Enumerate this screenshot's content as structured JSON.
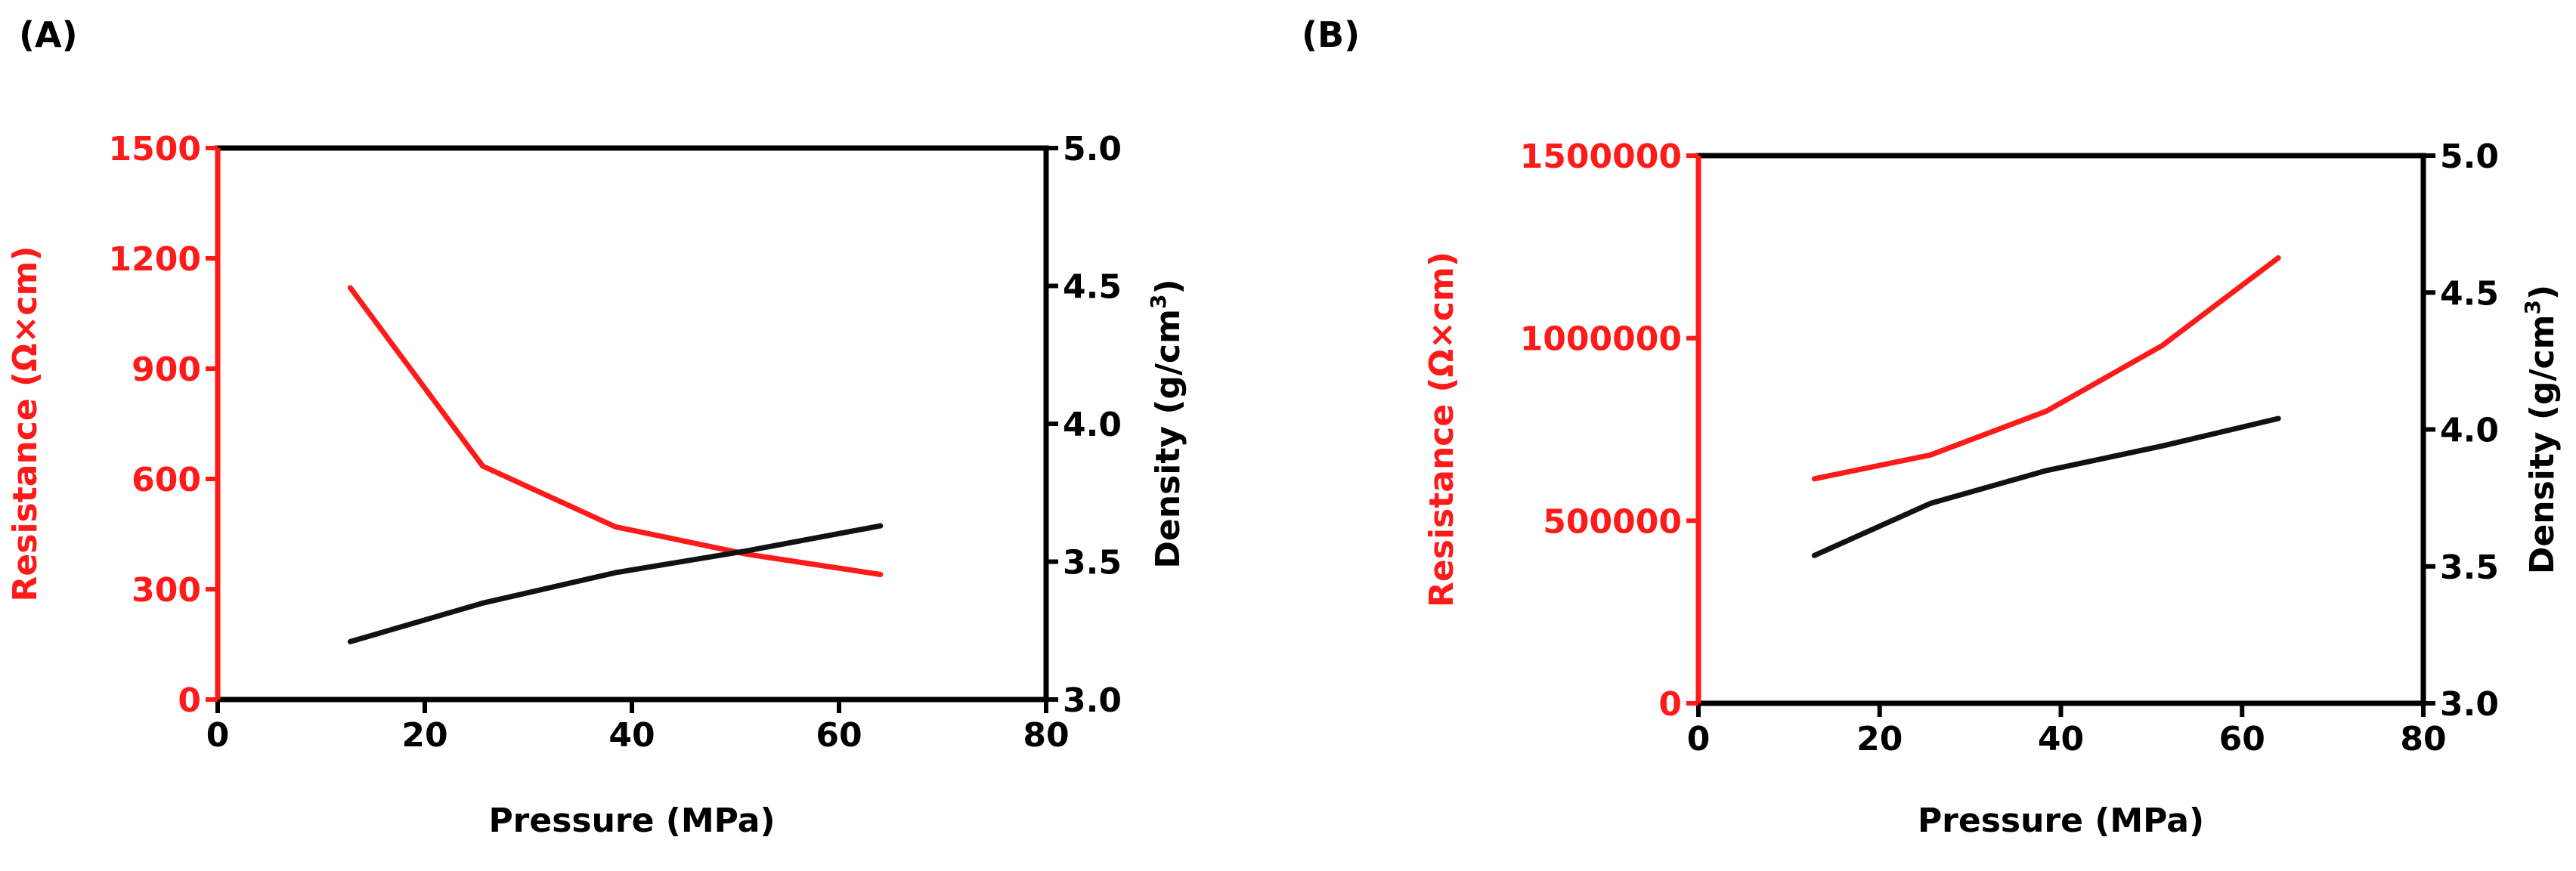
{
  "colors": {
    "resistance": "#ff1a1a",
    "density": "#111111",
    "axis": "#000000"
  },
  "chart_data": [
    {
      "panel_label": "(A)",
      "type": "line",
      "xlabel": "Pressure (MPa)",
      "ylabel_left": "Resistance (Ω×cm)",
      "ylabel_right_main": "Density (g/cm",
      "ylabel_right_sup": "3",
      "ylabel_right_tail": ")",
      "xlim": [
        0,
        80
      ],
      "ylim_left": [
        0,
        1500
      ],
      "ylim_right": [
        3.0,
        5.0
      ],
      "x_ticks": [
        "0",
        "20",
        "40",
        "60",
        "80"
      ],
      "y_left_ticks": [
        "0",
        "300",
        "600",
        "900",
        "1200",
        "1500"
      ],
      "y_right_ticks": [
        "3.0",
        "3.5",
        "4.0",
        "4.5",
        "5.0"
      ],
      "grid": false,
      "series": [
        {
          "axis": "left",
          "color": "#ff1a1a",
          "x": [
            12.8,
            25.6,
            38.4,
            51.2,
            64.0
          ],
          "values": [
            1120,
            635,
            470,
            395,
            340
          ]
        },
        {
          "axis": "right",
          "color": "#111111",
          "x": [
            12.8,
            25.6,
            38.4,
            51.2,
            64.0
          ],
          "values": [
            3.21,
            3.35,
            3.46,
            3.54,
            3.63
          ]
        }
      ]
    },
    {
      "panel_label": "(B)",
      "type": "line",
      "xlabel": "Pressure (MPa)",
      "ylabel_left": "Resistance (Ω×cm)",
      "ylabel_right_main": "Density (g/cm",
      "ylabel_right_sup": "3",
      "ylabel_right_tail": ")",
      "xlim": [
        0,
        80
      ],
      "ylim_left": [
        0,
        1500000
      ],
      "ylim_right": [
        3.0,
        5.0
      ],
      "x_ticks": [
        "0",
        "20",
        "40",
        "60",
        "80"
      ],
      "y_left_ticks": [
        "0",
        "500000",
        "1000000",
        "1500000"
      ],
      "y_right_ticks": [
        "3.0",
        "3.5",
        "4.0",
        "4.5",
        "5.0"
      ],
      "grid": false,
      "series": [
        {
          "axis": "left",
          "color": "#ff1a1a",
          "x": [
            12.8,
            25.6,
            38.4,
            51.2,
            64.0
          ],
          "values": [
            615000,
            680000,
            800000,
            980000,
            1220000
          ]
        },
        {
          "axis": "right",
          "color": "#111111",
          "x": [
            12.8,
            25.6,
            38.4,
            51.2,
            64.0
          ],
          "values": [
            3.54,
            3.73,
            3.85,
            3.94,
            4.04
          ]
        }
      ]
    }
  ]
}
